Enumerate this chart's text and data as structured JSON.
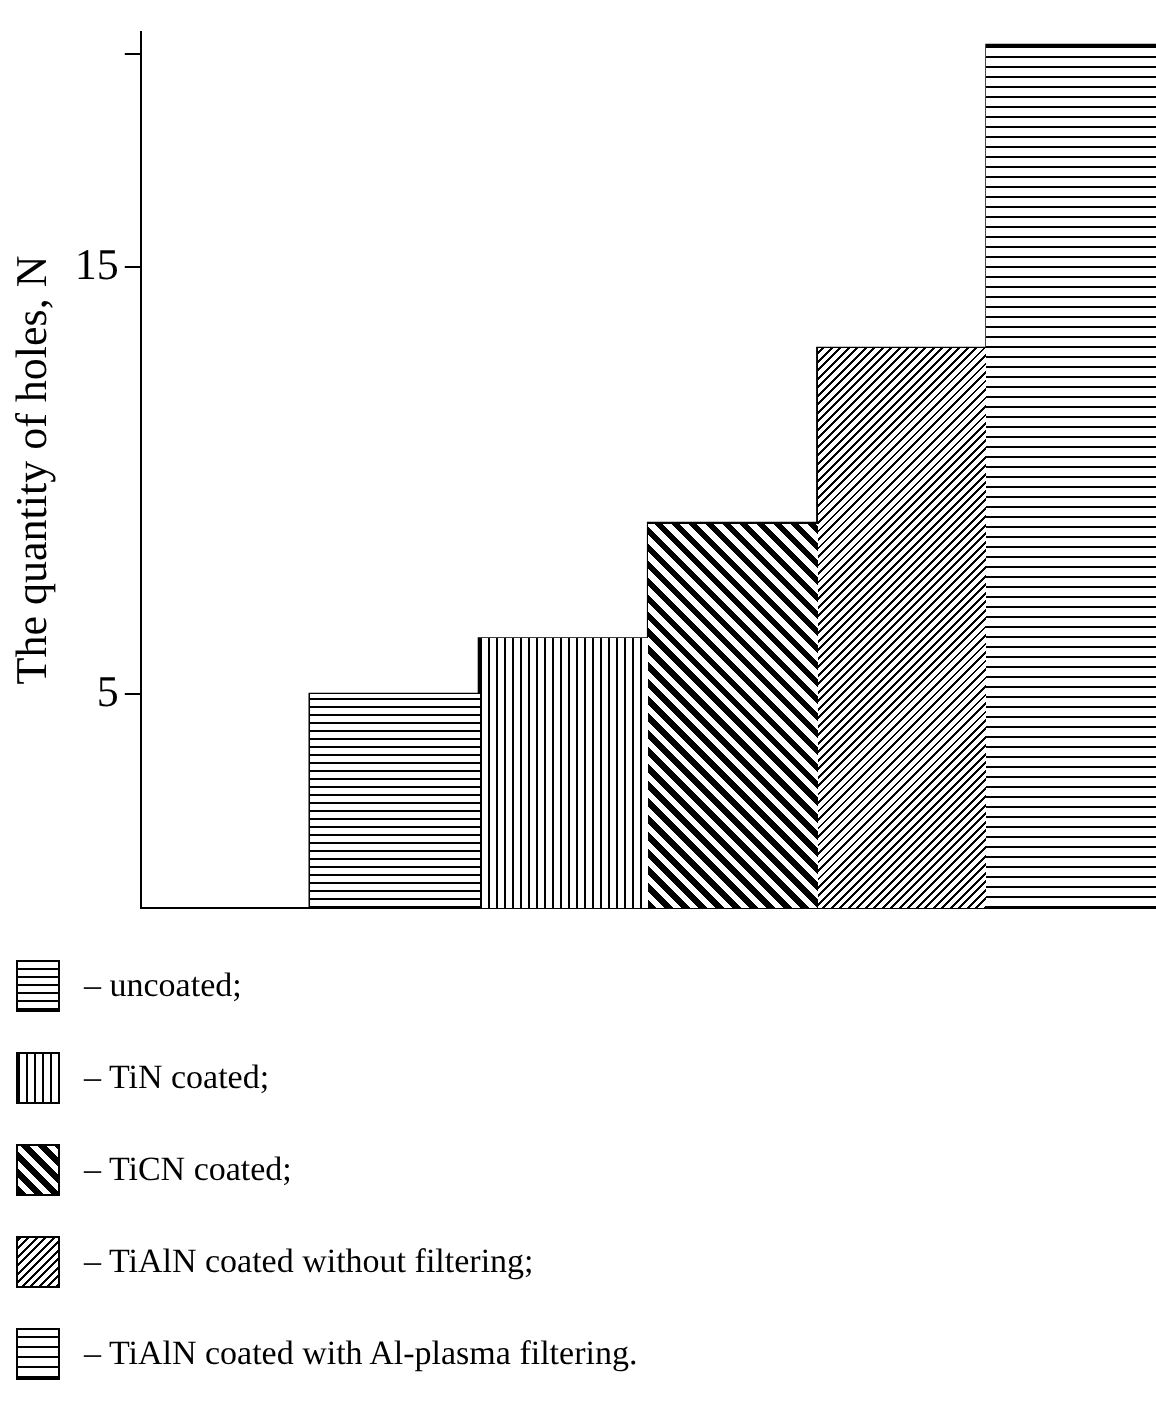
{
  "chart_data": {
    "type": "bar",
    "ylabel": "The quantity of holes, N",
    "categories": [
      null,
      null,
      null,
      null,
      null,
      null
    ],
    "series": [
      {
        "name": "– uncoated;",
        "color": "#000000",
        "values": [
          null,
          5,
          null,
          null,
          null,
          null
        ]
      },
      {
        "name": "– TiN coated;",
        "color": "#000000",
        "values": [
          null,
          null,
          6.3,
          null,
          null,
          null
        ]
      },
      {
        "name": "– TiCN coated;",
        "color": "#000000",
        "values": [
          null,
          null,
          null,
          9,
          null,
          null
        ]
      },
      {
        "name": "– TiAlN coated without filtering;",
        "color": "#000000",
        "values": [
          null,
          null,
          null,
          null,
          13.1,
          null
        ]
      },
      {
        "name": "– TiAlN coated with Al-plasma filtering.",
        "color": "#000000",
        "values": [
          null,
          null,
          null,
          null,
          null,
          20.2
        ]
      }
    ],
    "ylim": [
      0,
      20.5
    ],
    "yticks": [
      5,
      15,
      {
        "value": 20,
        "label": null
      }
    ],
    "grid": false,
    "legend": "bottom"
  }
}
